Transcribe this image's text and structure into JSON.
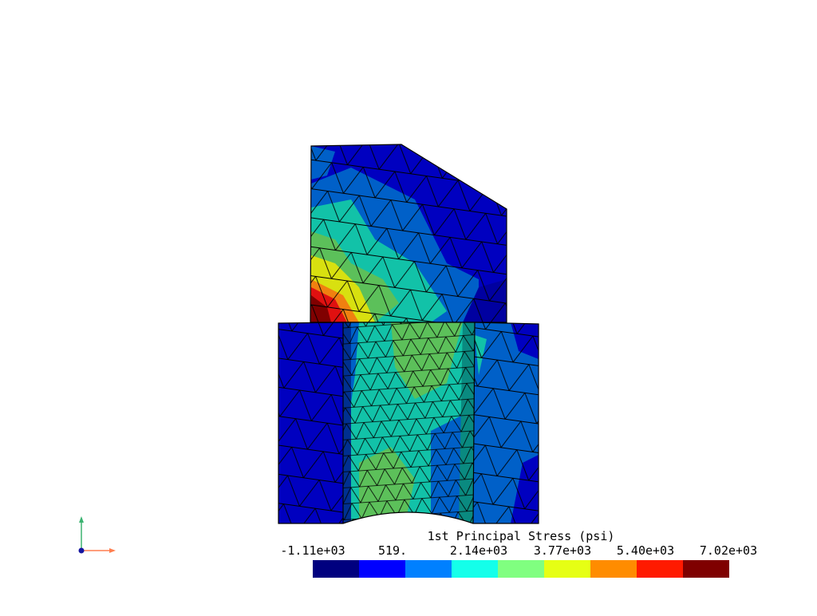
{
  "legend": {
    "title": "1st Principal Stress (psi)",
    "tick_labels": [
      "-1.11e+03",
      "519.",
      "2.14e+03",
      "3.77e+03",
      "5.40e+03",
      "7.02e+03"
    ],
    "colors": [
      "#00007f",
      "#0000ff",
      "#0080ff",
      "#14ffea",
      "#80ff80",
      "#e6ff14",
      "#ff8c00",
      "#ff1a00",
      "#7f0000"
    ]
  },
  "model_colors": {
    "dark_blue": "#0000c0",
    "mid_blue": "#0060c8",
    "teal": "#12c2a8",
    "green": "#5cc05a",
    "yellow": "#d8e010",
    "orange": "#f08010",
    "red": "#e01010",
    "dark_red": "#800000",
    "mesh_line": "#000000"
  },
  "axes": {
    "x_color": "#ff7f50",
    "y_color": "#3cb371",
    "origin_color": "#1515a0"
  }
}
